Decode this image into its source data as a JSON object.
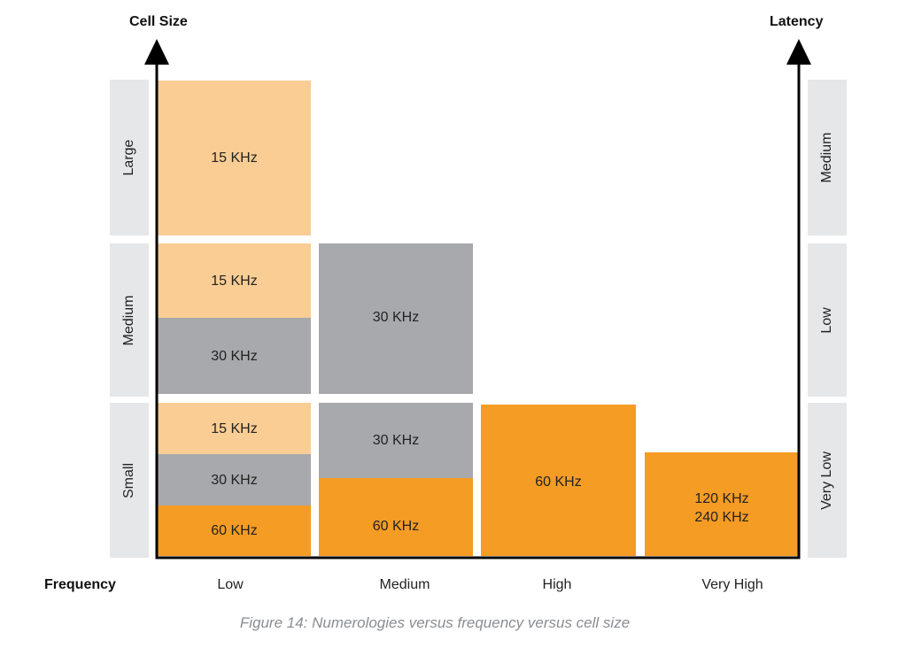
{
  "axes": {
    "left_title": "Cell Size",
    "right_title": "Latency",
    "bottom_title": "Frequency"
  },
  "cell_sizes": [
    "Large",
    "Medium",
    "Small"
  ],
  "latencies": [
    "Medium",
    "Low",
    "Very Low"
  ],
  "frequencies": [
    "Low",
    "Medium",
    "High",
    "Very High"
  ],
  "blocks": {
    "low_large_15": "15 KHz",
    "low_medium_15": "15 KHz",
    "low_medium_30": "30 KHz",
    "low_small_15": "15 KHz",
    "low_small_30": "30 KHz",
    "low_small_60": "60 KHz",
    "medium_medium_30": "30 KHz",
    "medium_small_30": "30 KHz",
    "medium_small_60": "60 KHz",
    "high_60": "60 KHz",
    "veryhigh_line1": "120 KHz",
    "veryhigh_line2": "240 KHz"
  },
  "colors": {
    "scs_15": "#f9cd94",
    "scs_30": "#a7a9ac",
    "scs_60_plus": "#f59c24",
    "side_box": "#e6e7e8",
    "axis": "#000000"
  },
  "caption": "Figure 14: Numerologies versus frequency versus cell size"
}
